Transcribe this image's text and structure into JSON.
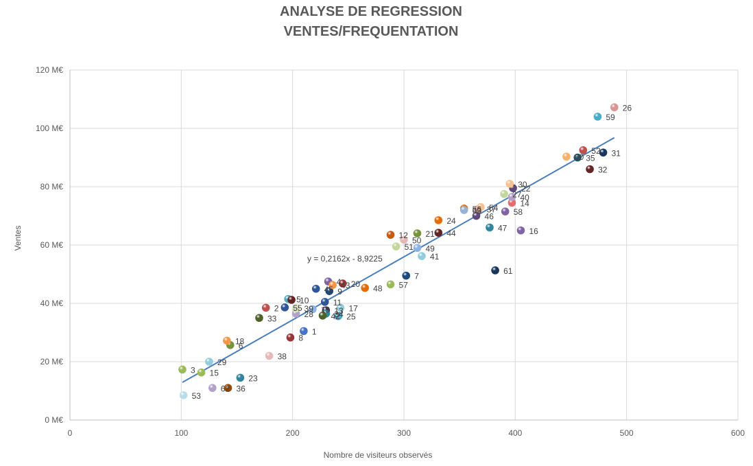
{
  "chart_data": {
    "type": "scatter",
    "title": [
      "ANALYSE DE REGRESSION",
      "VENTES/FREQUENTATION"
    ],
    "xlabel": "Nombre de visiteurs observés",
    "ylabel": "Ventes",
    "xlim": [
      0,
      600
    ],
    "ylim": [
      0,
      120
    ],
    "x_ticks": [
      0,
      100,
      200,
      300,
      400,
      500,
      600
    ],
    "y_ticks": [
      0,
      20,
      40,
      60,
      80,
      100,
      120
    ],
    "x_tick_labels": [
      "0",
      "100",
      "200",
      "300",
      "400",
      "500",
      "600"
    ],
    "y_tick_labels": [
      "0 M€",
      "20 M€",
      "40 M€",
      "60 M€",
      "80 M€",
      "100 M€",
      "120 M€"
    ],
    "grid": true,
    "legend": "none",
    "trendline": {
      "slope": 0.2162,
      "intercept": -8.9225,
      "x_range": [
        101,
        489
      ],
      "equation_label": "y = 0,2162x - 8,9225",
      "color": "#4a7ebb"
    },
    "points": [
      {
        "label": "1",
        "x": 210,
        "y": 30.5,
        "color": "#4472c4"
      },
      {
        "label": "2",
        "x": 176,
        "y": 38.5,
        "color": "#c0504d"
      },
      {
        "label": "3",
        "x": 101,
        "y": 17.3,
        "color": "#9bbb59"
      },
      {
        "label": "4",
        "x": 232,
        "y": 47.5,
        "color": "#8064a2"
      },
      {
        "label": "5",
        "x": 196,
        "y": 41.5,
        "color": "#4bacc6"
      },
      {
        "label": "6",
        "x": 144,
        "y": 25.7,
        "color": "#77933c"
      },
      {
        "label": "7",
        "x": 302,
        "y": 49.5,
        "color": "#1f497d"
      },
      {
        "label": "8",
        "x": 198,
        "y": 28.3,
        "color": "#953735"
      },
      {
        "label": "9",
        "x": 233,
        "y": 44.2,
        "color": "#1f497d"
      },
      {
        "label": "10",
        "x": 199,
        "y": 41.2,
        "color": "#632523"
      },
      {
        "label": "11",
        "x": 229,
        "y": 40.5,
        "color": "#2f5597"
      },
      {
        "label": "12",
        "x": 288,
        "y": 63.5,
        "color": "#c55a11"
      },
      {
        "label": "13",
        "x": 230,
        "y": 37.6,
        "color": "#3f3151"
      },
      {
        "label": "14",
        "x": 397,
        "y": 74.5,
        "color": "#e46c6c"
      },
      {
        "label": "15",
        "x": 118,
        "y": 16.3,
        "color": "#9bbb59"
      },
      {
        "label": "16",
        "x": 405,
        "y": 65.0,
        "color": "#8064a2"
      },
      {
        "label": "17",
        "x": 243,
        "y": 38.5,
        "color": "#93cddd"
      },
      {
        "label": "18",
        "x": 141,
        "y": 27.2,
        "color": "#f79646"
      },
      {
        "label": "19",
        "x": 218,
        "y": 38.0,
        "color": "#8db3e2"
      },
      {
        "label": "20",
        "x": 245,
        "y": 46.8,
        "color": "#953735"
      },
      {
        "label": "21",
        "x": 312,
        "y": 64.0,
        "color": "#77933c"
      },
      {
        "label": "22",
        "x": 398,
        "y": 79.5,
        "color": "#5f497a"
      },
      {
        "label": "23",
        "x": 153,
        "y": 14.5,
        "color": "#31859c"
      },
      {
        "label": "24",
        "x": 331,
        "y": 68.5,
        "color": "#e36c09"
      },
      {
        "label": "25",
        "x": 241,
        "y": 35.6,
        "color": "#4bacc6"
      },
      {
        "label": "26",
        "x": 489,
        "y": 107.2,
        "color": "#d99694"
      },
      {
        "label": "27",
        "x": 390,
        "y": 77.5,
        "color": "#c3d69b"
      },
      {
        "label": "28",
        "x": 203,
        "y": 36.5,
        "color": "#b3a2c7"
      },
      {
        "label": "29",
        "x": 125,
        "y": 20.0,
        "color": "#93cddd"
      },
      {
        "label": "30",
        "x": 395,
        "y": 81.0,
        "color": "#fac08f"
      },
      {
        "label": "31",
        "x": 479,
        "y": 91.7,
        "color": "#17375e"
      },
      {
        "label": "32",
        "x": 467,
        "y": 86.0,
        "color": "#632523"
      },
      {
        "label": "33",
        "x": 170,
        "y": 35.0,
        "color": "#4f6228"
      },
      {
        "label": "34",
        "x": 230,
        "y": 36.5,
        "color": "#31859c"
      },
      {
        "label": "35",
        "x": 456,
        "y": 90.0,
        "color": "#215868"
      },
      {
        "label": "36",
        "x": 142,
        "y": 11.0,
        "color": "#984807"
      },
      {
        "label": "37",
        "x": 367,
        "y": 72.3,
        "color": "#d99694"
      },
      {
        "label": "38",
        "x": 179,
        "y": 22.0,
        "color": "#e6b9b8"
      },
      {
        "label": "39",
        "x": 203,
        "y": 38.3,
        "color": "#d7e4bd"
      },
      {
        "label": "40",
        "x": 397,
        "y": 76.5,
        "color": "#b3a2c7"
      },
      {
        "label": "41",
        "x": 316,
        "y": 56.2,
        "color": "#93cddd"
      },
      {
        "label": "42",
        "x": 227,
        "y": 35.8,
        "color": "#4f6228"
      },
      {
        "label": "43",
        "x": 236,
        "y": 46.3,
        "color": "#f79646"
      },
      {
        "label": "44",
        "x": 331,
        "y": 64.2,
        "color": "#632523"
      },
      {
        "label": "45",
        "x": 221,
        "y": 45.0,
        "color": "#2f5597"
      },
      {
        "label": "46",
        "x": 365,
        "y": 70.0,
        "color": "#5f497a"
      },
      {
        "label": "47",
        "x": 377,
        "y": 66.0,
        "color": "#31859c"
      },
      {
        "label": "48",
        "x": 265,
        "y": 45.3,
        "color": "#e36c09"
      },
      {
        "label": "49",
        "x": 312,
        "y": 59.0,
        "color": "#8db3e2"
      },
      {
        "label": "50",
        "x": 300,
        "y": 61.8,
        "color": "#e6b9b8"
      },
      {
        "label": "51",
        "x": 293,
        "y": 59.5,
        "color": "#c3d69b"
      },
      {
        "label": "52",
        "x": 461,
        "y": 92.5,
        "color": "#c0504d"
      },
      {
        "label": "53",
        "x": 102,
        "y": 8.5,
        "color": "#b7dee8"
      },
      {
        "label": "54",
        "x": 369,
        "y": 73.0,
        "color": "#fac08f"
      },
      {
        "label": "55",
        "x": 193,
        "y": 38.6,
        "color": "#2f5597"
      },
      {
        "label": "56",
        "x": 354,
        "y": 72.5,
        "color": "#e36c09"
      },
      {
        "label": "57",
        "x": 288,
        "y": 46.5,
        "color": "#9bbb59"
      },
      {
        "label": "58",
        "x": 391,
        "y": 71.5,
        "color": "#8064a2"
      },
      {
        "label": "59",
        "x": 474,
        "y": 104.0,
        "color": "#4bacc6"
      },
      {
        "label": "60",
        "x": 446,
        "y": 90.3,
        "color": "#f6b26b"
      },
      {
        "label": "61",
        "x": 382,
        "y": 51.3,
        "color": "#17375e"
      },
      {
        "label": "62",
        "x": 128,
        "y": 11.0,
        "color": "#b3a2c7"
      },
      {
        "label": "63",
        "x": 354,
        "y": 72.0,
        "color": "#95b3d7"
      }
    ]
  }
}
